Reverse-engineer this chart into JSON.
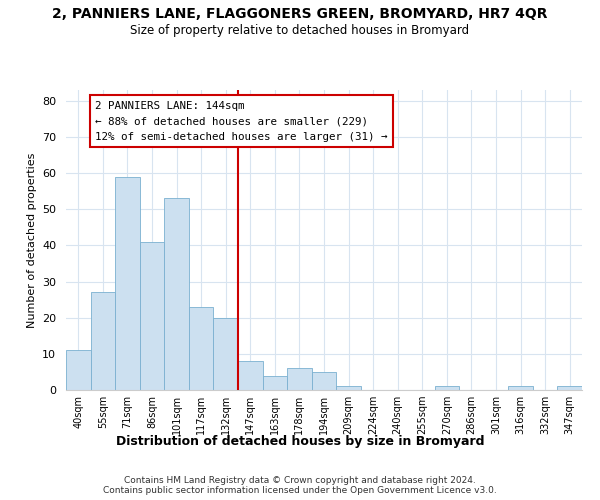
{
  "title": "2, PANNIERS LANE, FLAGGONERS GREEN, BROMYARD, HR7 4QR",
  "subtitle": "Size of property relative to detached houses in Bromyard",
  "xlabel": "Distribution of detached houses by size in Bromyard",
  "ylabel": "Number of detached properties",
  "bar_color": "#cce0f0",
  "bar_edge_color": "#7ab0d0",
  "bin_labels": [
    "40sqm",
    "55sqm",
    "71sqm",
    "86sqm",
    "101sqm",
    "117sqm",
    "132sqm",
    "147sqm",
    "163sqm",
    "178sqm",
    "194sqm",
    "209sqm",
    "224sqm",
    "240sqm",
    "255sqm",
    "270sqm",
    "286sqm",
    "301sqm",
    "316sqm",
    "332sqm",
    "347sqm"
  ],
  "bar_heights": [
    11,
    27,
    59,
    41,
    53,
    23,
    20,
    8,
    4,
    6,
    5,
    1,
    0,
    0,
    0,
    1,
    0,
    0,
    1,
    0,
    1
  ],
  "vline_color": "#cc0000",
  "annotation_title": "2 PANNIERS LANE: 144sqm",
  "annotation_line1": "← 88% of detached houses are smaller (229)",
  "annotation_line2": "12% of semi-detached houses are larger (31) →",
  "annotation_box_color": "#ffffff",
  "annotation_box_edge": "#cc0000",
  "ylim": [
    0,
    83
  ],
  "yticks": [
    0,
    10,
    20,
    30,
    40,
    50,
    60,
    70,
    80
  ],
  "background_color": "#ffffff",
  "grid_color": "#d8e4f0",
  "footer1": "Contains HM Land Registry data © Crown copyright and database right 2024.",
  "footer2": "Contains public sector information licensed under the Open Government Licence v3.0."
}
